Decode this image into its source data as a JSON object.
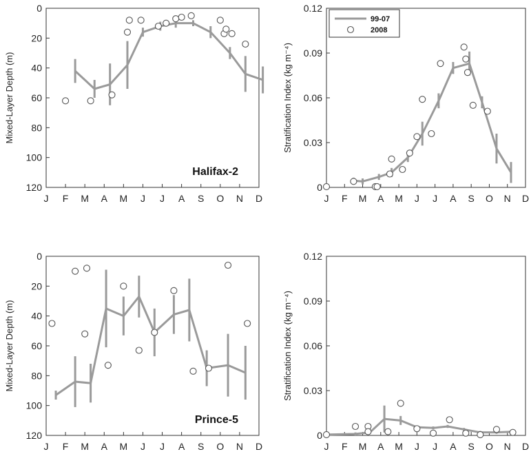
{
  "chart_data": [
    {
      "id": "halifax-mld",
      "type": "line",
      "station_label": "Halifax-2",
      "ylabel": "Mixed-Layer Depth (m)",
      "y_inverted": true,
      "ylim": [
        0,
        120
      ],
      "yticks": [
        "0",
        "20",
        "40",
        "60",
        "80",
        "100",
        "120"
      ],
      "categories": [
        "J",
        "F",
        "M",
        "A",
        "M",
        "J",
        "J",
        "A",
        "S",
        "O",
        "N",
        "D"
      ],
      "series": [
        {
          "name": "99-07",
          "style": "line-with-error-bars",
          "points": [
            {
              "x": 1.5,
              "y": 42,
              "err": 8
            },
            {
              "x": 2.5,
              "y": 54,
              "err": 6
            },
            {
              "x": 3.3,
              "y": 51,
              "err": 14
            },
            {
              "x": 4.2,
              "y": 38,
              "err": 16
            },
            {
              "x": 5.0,
              "y": 16,
              "err": 3
            },
            {
              "x": 5.9,
              "y": 12,
              "err": 3
            },
            {
              "x": 6.7,
              "y": 10,
              "err": 3
            },
            {
              "x": 7.6,
              "y": 10,
              "err": 2
            },
            {
              "x": 8.5,
              "y": 16,
              "err": 4
            },
            {
              "x": 9.5,
              "y": 30,
              "err": 4
            },
            {
              "x": 10.3,
              "y": 44,
              "err": 12
            },
            {
              "x": 11.2,
              "y": 48,
              "err": 9
            }
          ]
        },
        {
          "name": "2008",
          "style": "open-circles",
          "points": [
            {
              "x": 1.0,
              "y": 62
            },
            {
              "x": 2.3,
              "y": 62
            },
            {
              "x": 3.4,
              "y": 58
            },
            {
              "x": 4.2,
              "y": 16
            },
            {
              "x": 4.3,
              "y": 8
            },
            {
              "x": 4.9,
              "y": 8
            },
            {
              "x": 5.8,
              "y": 12
            },
            {
              "x": 6.2,
              "y": 10
            },
            {
              "x": 6.7,
              "y": 7
            },
            {
              "x": 7.0,
              "y": 6
            },
            {
              "x": 7.5,
              "y": 5
            },
            {
              "x": 9.0,
              "y": 8
            },
            {
              "x": 9.2,
              "y": 17
            },
            {
              "x": 9.3,
              "y": 14
            },
            {
              "x": 9.6,
              "y": 17
            },
            {
              "x": 10.3,
              "y": 24
            }
          ]
        }
      ]
    },
    {
      "id": "halifax-si",
      "type": "line",
      "ylabel": "Stratification Index (kg m⁻⁴)",
      "ylim": [
        0,
        0.12
      ],
      "yticks": [
        "0",
        "0.03",
        "0.06",
        "0.09",
        "0.12"
      ],
      "categories": [
        "J",
        "F",
        "M",
        "A",
        "M",
        "J",
        "J",
        "A",
        "S",
        "O",
        "N",
        "D"
      ],
      "legend": {
        "position": "top-left",
        "entries": [
          "99-07",
          "2008"
        ]
      },
      "series": [
        {
          "name": "99-07",
          "style": "line-with-error-bars",
          "points": [
            {
              "x": 1.5,
              "y": 0.0045,
              "err": 0.002
            },
            {
              "x": 2.0,
              "y": 0.004,
              "err": 0.002
            },
            {
              "x": 2.9,
              "y": 0.007,
              "err": 0.002
            },
            {
              "x": 3.6,
              "y": 0.01,
              "err": 0.003
            },
            {
              "x": 4.5,
              "y": 0.02,
              "err": 0.003
            },
            {
              "x": 5.3,
              "y": 0.036,
              "err": 0.008
            },
            {
              "x": 6.2,
              "y": 0.058,
              "err": 0.005
            },
            {
              "x": 7.0,
              "y": 0.08,
              "err": 0.004
            },
            {
              "x": 7.9,
              "y": 0.083,
              "err": 0.008
            },
            {
              "x": 8.6,
              "y": 0.057,
              "err": 0.004
            },
            {
              "x": 9.4,
              "y": 0.026,
              "err": 0.01
            },
            {
              "x": 10.2,
              "y": 0.01,
              "err": 0.007
            }
          ]
        },
        {
          "name": "2008",
          "style": "open-circles",
          "points": [
            {
              "x": 0.0,
              "y": 0.0005
            },
            {
              "x": 1.5,
              "y": 0.004
            },
            {
              "x": 2.7,
              "y": 0.0005
            },
            {
              "x": 2.8,
              "y": 0.0005
            },
            {
              "x": 3.5,
              "y": 0.009
            },
            {
              "x": 3.6,
              "y": 0.019
            },
            {
              "x": 4.2,
              "y": 0.012
            },
            {
              "x": 4.6,
              "y": 0.023
            },
            {
              "x": 5.0,
              "y": 0.034
            },
            {
              "x": 5.3,
              "y": 0.059
            },
            {
              "x": 5.8,
              "y": 0.036
            },
            {
              "x": 6.3,
              "y": 0.083
            },
            {
              "x": 7.6,
              "y": 0.094
            },
            {
              "x": 7.7,
              "y": 0.086
            },
            {
              "x": 7.8,
              "y": 0.077
            },
            {
              "x": 8.1,
              "y": 0.055
            },
            {
              "x": 8.9,
              "y": 0.051
            }
          ]
        }
      ]
    },
    {
      "id": "prince-mld",
      "type": "line",
      "station_label": "Prince-5",
      "ylabel": "Mixed-Layer Depth (m)",
      "y_inverted": true,
      "ylim": [
        0,
        120
      ],
      "yticks": [
        "0",
        "20",
        "40",
        "60",
        "80",
        "100",
        "120"
      ],
      "categories": [
        "J",
        "F",
        "M",
        "A",
        "M",
        "J",
        "J",
        "A",
        "S",
        "O",
        "N",
        "D"
      ],
      "series": [
        {
          "name": "99-07",
          "style": "line-with-error-bars",
          "points": [
            {
              "x": 0.5,
              "y": 93,
              "err": 3
            },
            {
              "x": 1.5,
              "y": 84,
              "err": 17
            },
            {
              "x": 2.3,
              "y": 85,
              "err": 13
            },
            {
              "x": 3.1,
              "y": 35,
              "err": 26
            },
            {
              "x": 4.0,
              "y": 40,
              "err": 13
            },
            {
              "x": 4.8,
              "y": 27,
              "err": 14
            },
            {
              "x": 5.6,
              "y": 51,
              "err": 16
            },
            {
              "x": 6.6,
              "y": 39,
              "err": 13
            },
            {
              "x": 7.4,
              "y": 36,
              "err": 21
            },
            {
              "x": 8.3,
              "y": 75,
              "err": 12
            },
            {
              "x": 9.4,
              "y": 73,
              "err": 21
            },
            {
              "x": 10.3,
              "y": 78,
              "err": 18
            }
          ]
        },
        {
          "name": "2008",
          "style": "open-circles",
          "points": [
            {
              "x": 0.3,
              "y": 45
            },
            {
              "x": 1.5,
              "y": 10
            },
            {
              "x": 2.0,
              "y": 52
            },
            {
              "x": 2.1,
              "y": 8
            },
            {
              "x": 3.2,
              "y": 73
            },
            {
              "x": 4.0,
              "y": 20
            },
            {
              "x": 4.8,
              "y": 63
            },
            {
              "x": 5.6,
              "y": 51
            },
            {
              "x": 6.6,
              "y": 23
            },
            {
              "x": 7.6,
              "y": 77
            },
            {
              "x": 8.4,
              "y": 75
            },
            {
              "x": 9.4,
              "y": 6
            },
            {
              "x": 10.4,
              "y": 45
            }
          ]
        }
      ]
    },
    {
      "id": "prince-si",
      "type": "line",
      "ylabel": "Stratification Index (kg m⁻⁴)",
      "ylim": [
        0,
        0.12
      ],
      "yticks": [
        "0",
        "0.03",
        "0.06",
        "0.09",
        "0.12"
      ],
      "categories": [
        "J",
        "F",
        "M",
        "A",
        "M",
        "J",
        "J",
        "A",
        "S",
        "O",
        "N",
        "D"
      ],
      "series": [
        {
          "name": "99-07",
          "style": "line-with-error-bars",
          "points": [
            {
              "x": 0.0,
              "y": 0.0005,
              "err": 0.0005
            },
            {
              "x": 1.6,
              "y": 0.001,
              "err": 0.001
            },
            {
              "x": 2.4,
              "y": 0.002,
              "err": 0.001
            },
            {
              "x": 3.2,
              "y": 0.011,
              "err": 0.009
            },
            {
              "x": 4.1,
              "y": 0.01,
              "err": 0.003
            },
            {
              "x": 5.0,
              "y": 0.0055,
              "err": 0.001
            },
            {
              "x": 5.9,
              "y": 0.005,
              "err": 0.001
            },
            {
              "x": 6.7,
              "y": 0.006,
              "err": 0.001
            },
            {
              "x": 7.6,
              "y": 0.004,
              "err": 0.001
            },
            {
              "x": 8.5,
              "y": 0.002,
              "err": 0.001
            },
            {
              "x": 9.4,
              "y": 0.002,
              "err": 0.001
            },
            {
              "x": 10.3,
              "y": 0.0025,
              "err": 0.0015
            }
          ]
        },
        {
          "name": "2008",
          "style": "open-circles",
          "points": [
            {
              "x": 0.0,
              "y": 0.0005
            },
            {
              "x": 1.6,
              "y": 0.006
            },
            {
              "x": 2.3,
              "y": 0.006
            },
            {
              "x": 2.3,
              "y": 0.0025
            },
            {
              "x": 3.4,
              "y": 0.0025
            },
            {
              "x": 4.1,
              "y": 0.0215
            },
            {
              "x": 5.0,
              "y": 0.0045
            },
            {
              "x": 5.9,
              "y": 0.0015
            },
            {
              "x": 6.8,
              "y": 0.0105
            },
            {
              "x": 7.7,
              "y": 0.0015
            },
            {
              "x": 8.5,
              "y": 0.0005
            },
            {
              "x": 9.4,
              "y": 0.004
            },
            {
              "x": 10.3,
              "y": 0.002
            }
          ]
        }
      ]
    }
  ]
}
